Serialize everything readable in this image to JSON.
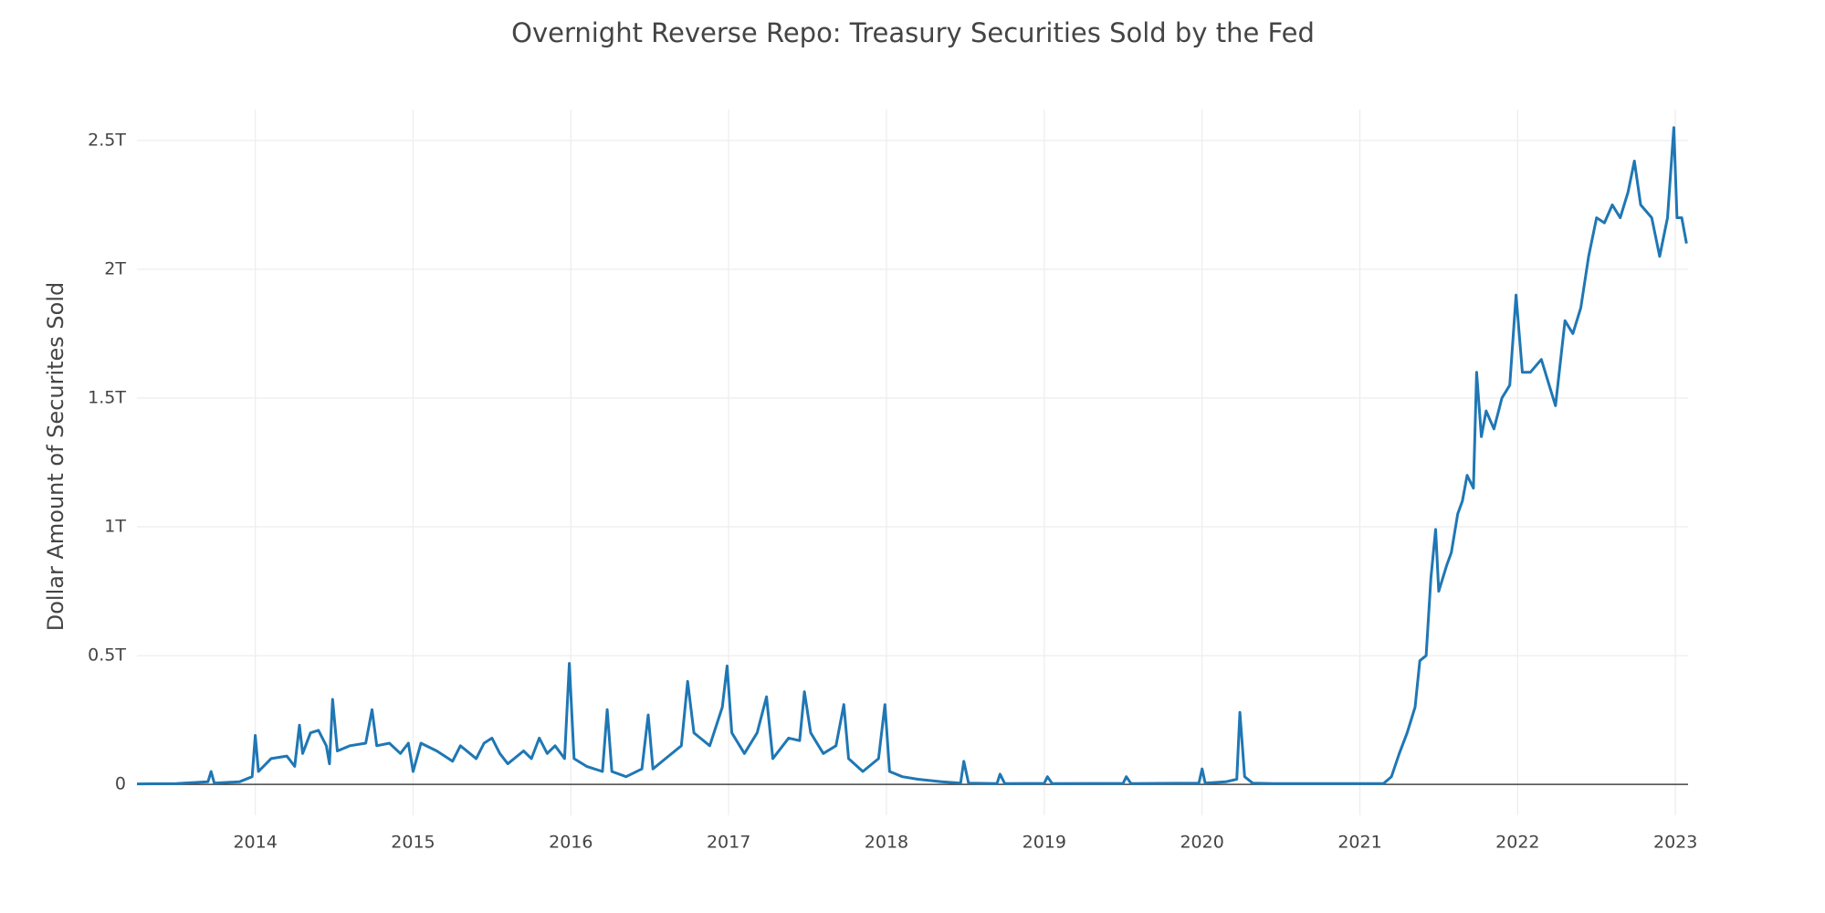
{
  "chart_data": {
    "type": "line",
    "title": "Overnight Reverse Repo: Treasury Securities Sold by the Fed",
    "y_label": "Dollar Amount of Securites Sold",
    "color": "#1f77b4",
    "grid": true,
    "zeroline": true,
    "xlim": [
      2013.25,
      2023.08
    ],
    "xticks": [
      2014,
      2015,
      2016,
      2017,
      2018,
      2019,
      2020,
      2021,
      2022,
      2023
    ],
    "ylim": [
      -0.12,
      2.62
    ],
    "yticks": [
      0,
      {
        "value": 0.5,
        "label": "0.5T"
      },
      {
        "value": 1,
        "label": "1T"
      },
      {
        "value": 1.5,
        "label": "1.5T"
      },
      {
        "value": 2,
        "label": "2T"
      },
      {
        "value": 2.5,
        "label": "2.5T"
      }
    ],
    "x": [
      2013.25,
      2013.5,
      2013.7,
      2013.72,
      2013.74,
      2013.9,
      2013.98,
      2014.0,
      2014.02,
      2014.1,
      2014.2,
      2014.25,
      2014.28,
      2014.3,
      2014.35,
      2014.4,
      2014.45,
      2014.47,
      2014.49,
      2014.52,
      2014.6,
      2014.7,
      2014.74,
      2014.77,
      2014.85,
      2014.92,
      2014.97,
      2015.0,
      2015.05,
      2015.15,
      2015.25,
      2015.3,
      2015.4,
      2015.45,
      2015.5,
      2015.55,
      2015.6,
      2015.7,
      2015.75,
      2015.8,
      2015.85,
      2015.9,
      2015.96,
      2015.99,
      2016.02,
      2016.1,
      2016.2,
      2016.23,
      2016.26,
      2016.35,
      2016.45,
      2016.49,
      2016.52,
      2016.6,
      2016.7,
      2016.74,
      2016.78,
      2016.88,
      2016.96,
      2016.99,
      2017.02,
      2017.1,
      2017.18,
      2017.24,
      2017.28,
      2017.38,
      2017.45,
      2017.48,
      2017.52,
      2017.6,
      2017.68,
      2017.73,
      2017.76,
      2017.85,
      2017.95,
      2017.99,
      2018.02,
      2018.1,
      2018.2,
      2018.35,
      2018.47,
      2018.49,
      2018.52,
      2018.7,
      2018.72,
      2018.75,
      2019.0,
      2019.02,
      2019.05,
      2019.5,
      2019.52,
      2019.55,
      2019.98,
      2020.0,
      2020.02,
      2020.15,
      2020.22,
      2020.24,
      2020.27,
      2020.32,
      2020.45,
      2021.0,
      2021.15,
      2021.2,
      2021.25,
      2021.3,
      2021.35,
      2021.38,
      2021.42,
      2021.45,
      2021.48,
      2021.5,
      2021.55,
      2021.58,
      2021.62,
      2021.65,
      2021.68,
      2021.72,
      2021.74,
      2021.77,
      2021.8,
      2021.85,
      2021.9,
      2021.95,
      2021.99,
      2022.03,
      2022.08,
      2022.15,
      2022.2,
      2022.24,
      2022.3,
      2022.35,
      2022.4,
      2022.45,
      2022.5,
      2022.55,
      2022.6,
      2022.65,
      2022.7,
      2022.74,
      2022.78,
      2022.85,
      2022.9,
      2022.95,
      2022.99,
      2023.01,
      2023.04,
      2023.07
    ],
    "values": [
      0.002,
      0.003,
      0.01,
      0.05,
      0.005,
      0.01,
      0.03,
      0.19,
      0.05,
      0.1,
      0.11,
      0.07,
      0.23,
      0.12,
      0.2,
      0.21,
      0.15,
      0.08,
      0.33,
      0.13,
      0.15,
      0.16,
      0.29,
      0.15,
      0.16,
      0.12,
      0.16,
      0.05,
      0.16,
      0.13,
      0.09,
      0.15,
      0.1,
      0.16,
      0.18,
      0.12,
      0.08,
      0.13,
      0.1,
      0.18,
      0.12,
      0.15,
      0.1,
      0.47,
      0.1,
      0.07,
      0.05,
      0.29,
      0.05,
      0.03,
      0.06,
      0.27,
      0.06,
      0.1,
      0.15,
      0.4,
      0.2,
      0.15,
      0.3,
      0.46,
      0.2,
      0.12,
      0.2,
      0.34,
      0.1,
      0.18,
      0.17,
      0.36,
      0.2,
      0.12,
      0.15,
      0.31,
      0.1,
      0.05,
      0.1,
      0.31,
      0.05,
      0.03,
      0.02,
      0.01,
      0.005,
      0.09,
      0.005,
      0.003,
      0.04,
      0.003,
      0.004,
      0.03,
      0.003,
      0.004,
      0.03,
      0.003,
      0.005,
      0.06,
      0.005,
      0.01,
      0.02,
      0.28,
      0.03,
      0.005,
      0.003,
      0.003,
      0.003,
      0.03,
      0.12,
      0.2,
      0.3,
      0.48,
      0.5,
      0.8,
      0.99,
      0.75,
      0.85,
      0.9,
      1.05,
      1.1,
      1.2,
      1.15,
      1.6,
      1.35,
      1.45,
      1.38,
      1.5,
      1.55,
      1.9,
      1.6,
      1.6,
      1.65,
      1.55,
      1.47,
      1.8,
      1.75,
      1.85,
      2.05,
      2.2,
      2.18,
      2.25,
      2.2,
      2.3,
      2.42,
      2.25,
      2.2,
      2.05,
      2.2,
      2.55,
      2.2,
      2.2,
      2.1
    ]
  }
}
